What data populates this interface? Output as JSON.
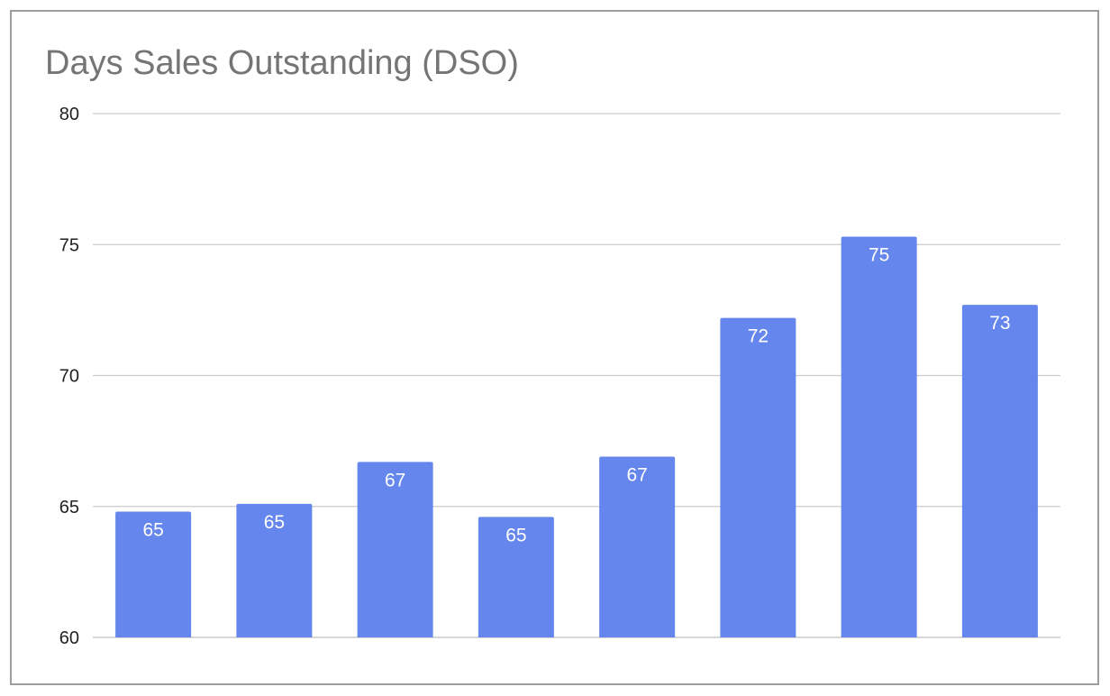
{
  "chart_data": {
    "type": "bar",
    "title": "Days Sales Outstanding (DSO)",
    "xlabel": "",
    "ylabel": "",
    "categories": [
      "",
      "",
      "",
      "",
      "",
      "",
      "",
      ""
    ],
    "values": [
      64.8,
      65.1,
      66.7,
      64.6,
      66.9,
      72.2,
      75.3,
      72.7
    ],
    "data_labels": [
      "65",
      "65",
      "67",
      "65",
      "67",
      "72",
      "75",
      "73"
    ],
    "ylim": [
      60,
      80
    ],
    "yticks": [
      60,
      65,
      70,
      75,
      80
    ],
    "grid": true,
    "legend": "none",
    "bar_color": "#6586ec",
    "gridline_color": "#cccccc",
    "title_color": "#757575"
  }
}
